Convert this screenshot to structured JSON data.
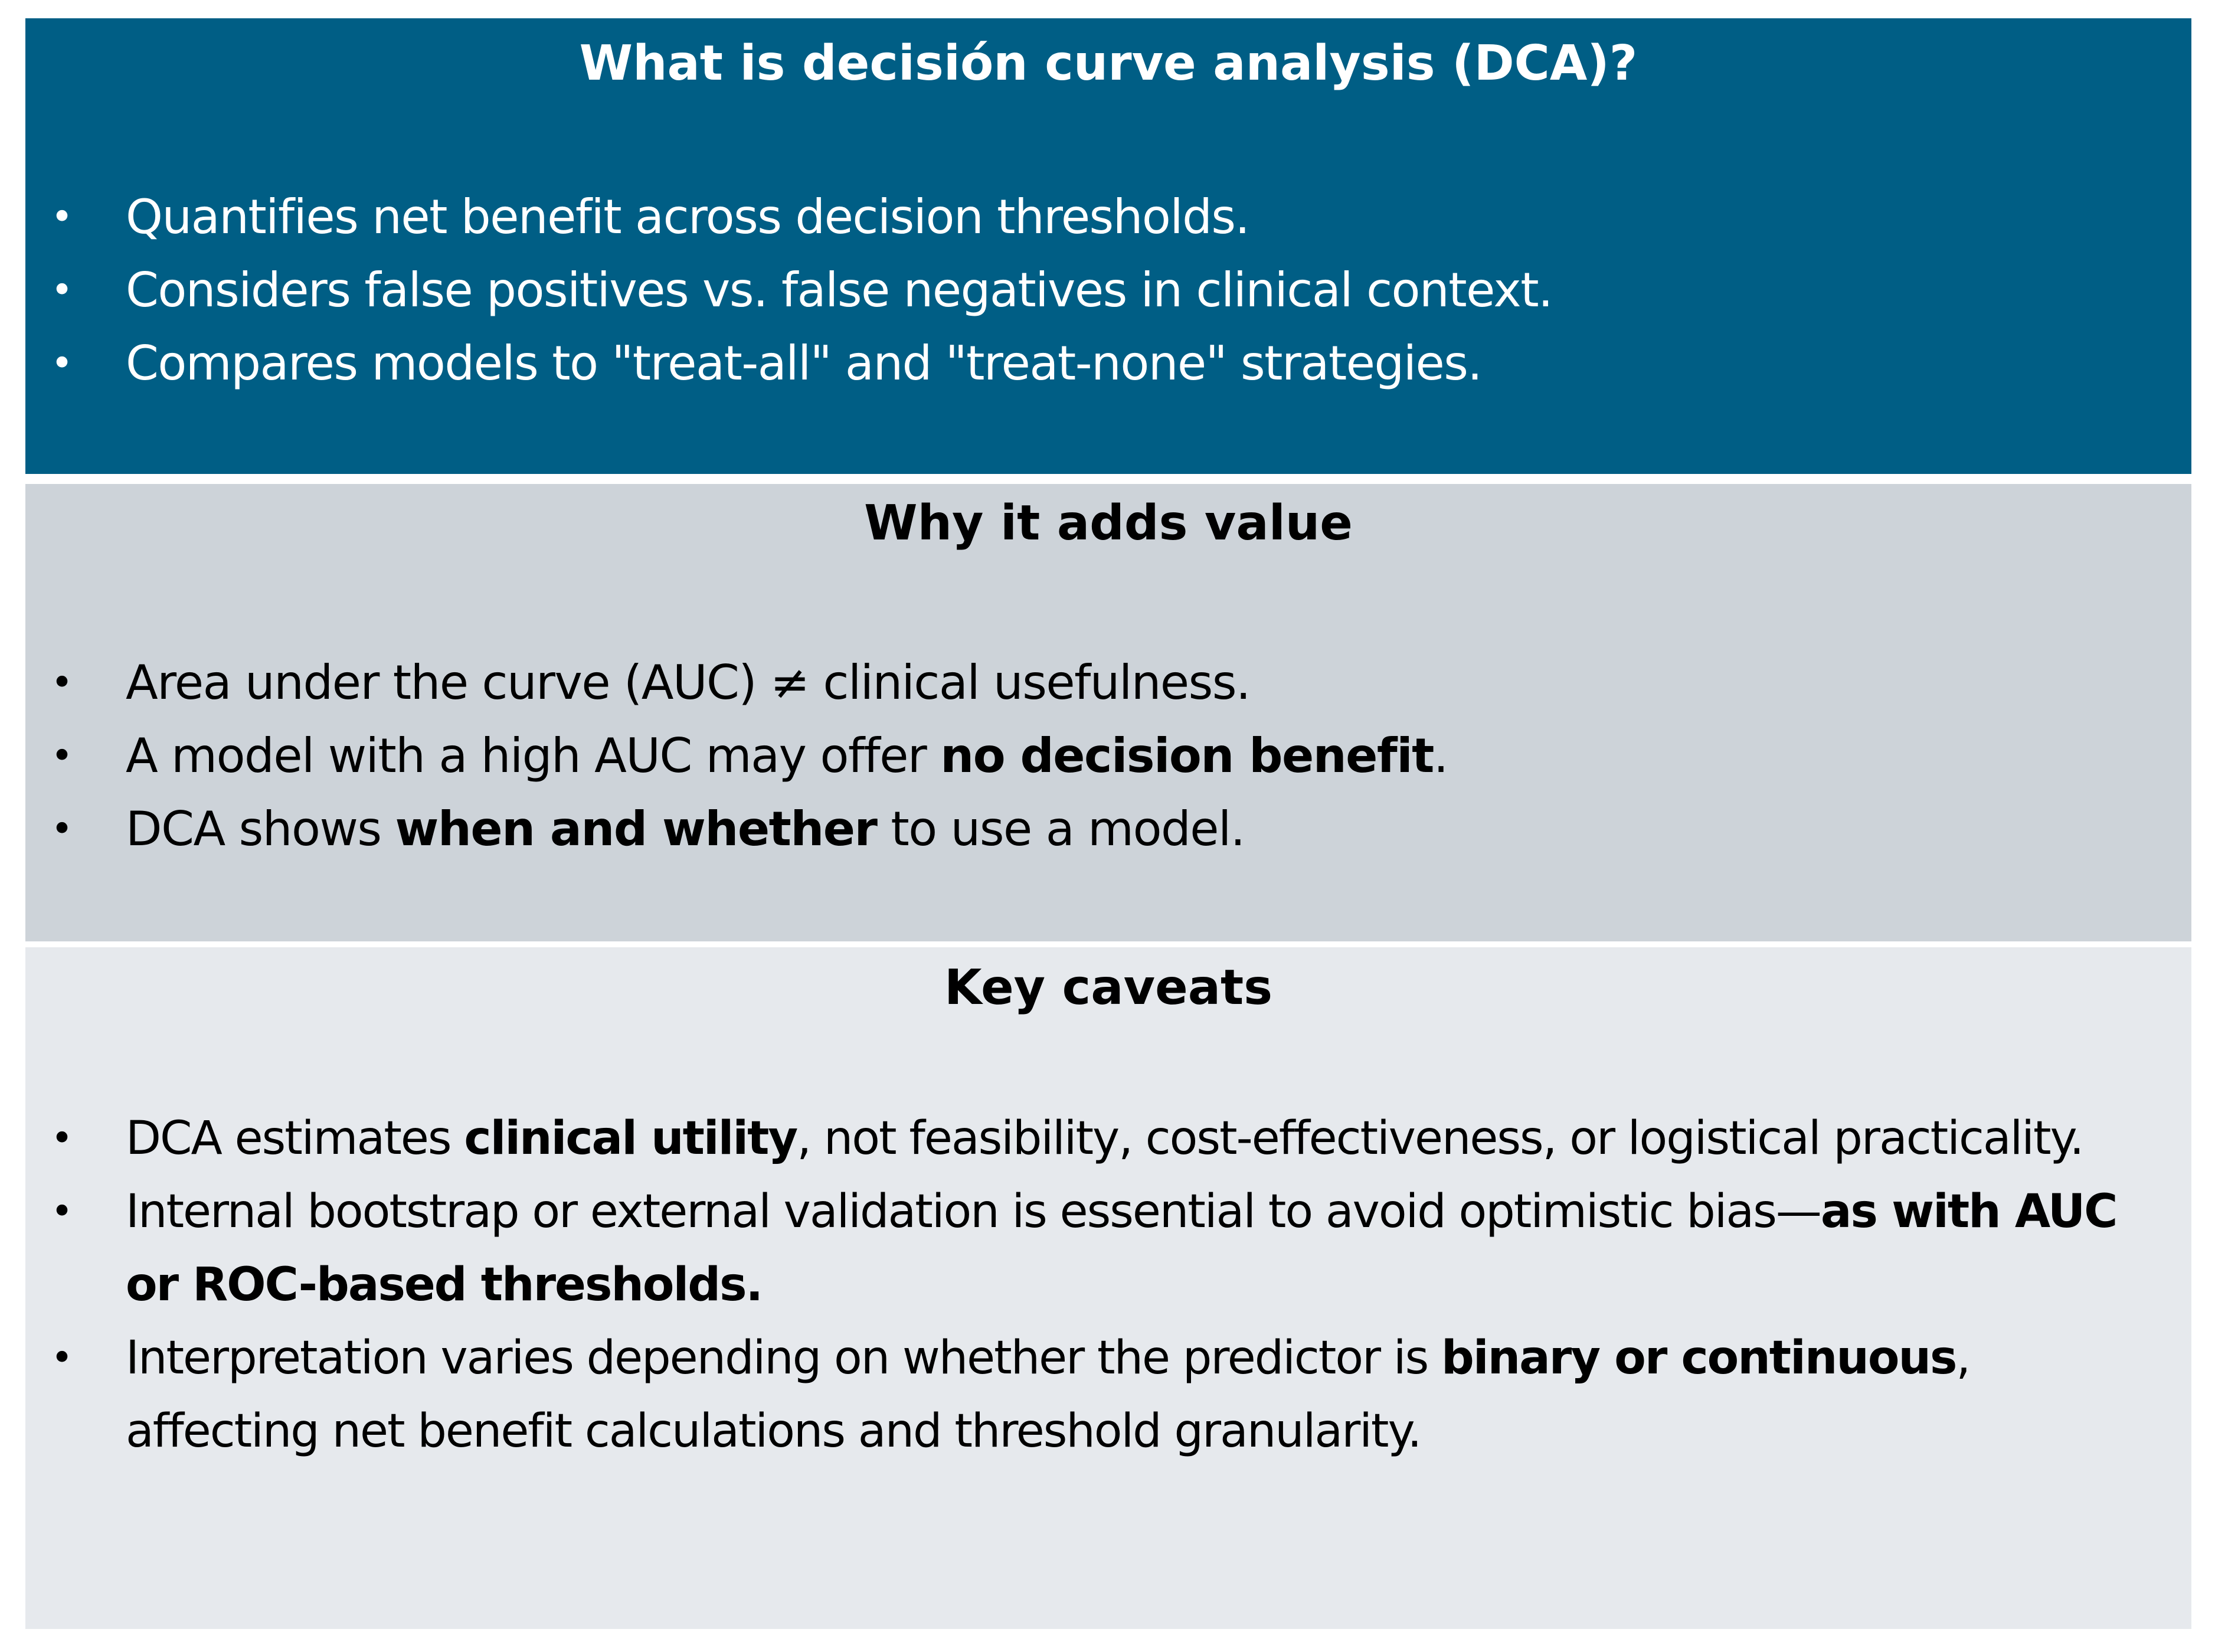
{
  "panels": [
    {
      "title": "What is decisión curve analysis (DCA)?",
      "colors": {
        "background": "#005e85",
        "text": "#ffffff"
      },
      "bullet_symbol": "•",
      "items": [
        {
          "a": "Quantifies net benefit across decision thresholds."
        },
        {
          "a": "Considers false positives vs. false negatives in clinical context."
        },
        {
          "a": "Compares models to \"treat-all\" and \"treat-none\" strategies."
        }
      ]
    },
    {
      "title": "Why it adds value",
      "colors": {
        "background": "#cdd3d9",
        "text": "#000000"
      },
      "bullet_symbol": "•",
      "items": [
        {
          "a": "Area under the curve (AUC) ≠ clinical usefulness."
        },
        {
          "a": "A model with a high AUC may offer ",
          "b": "no decision benefit",
          "c": "."
        },
        {
          "a": "DCA shows ",
          "b": "when and whether",
          "c": " to use a model."
        }
      ]
    },
    {
      "title": "Key caveats",
      "colors": {
        "background": "#e6e9ed",
        "text": "#000000"
      },
      "bullet_symbol": "•",
      "items": [
        {
          "a": "DCA estimates ",
          "b": "clinical utility",
          "c": ", not feasibility, cost-effectiveness, or logistical practicality."
        },
        {
          "a": "Internal bootstrap or external validation is essential to avoid optimistic bias—",
          "b": "as with AUC or ROC-based thresholds."
        },
        {
          "a": "Interpretation varies depending on whether the predictor is ",
          "b": "binary or continuous",
          "c": ", affecting net benefit calculations and threshold granularity."
        }
      ]
    }
  ]
}
